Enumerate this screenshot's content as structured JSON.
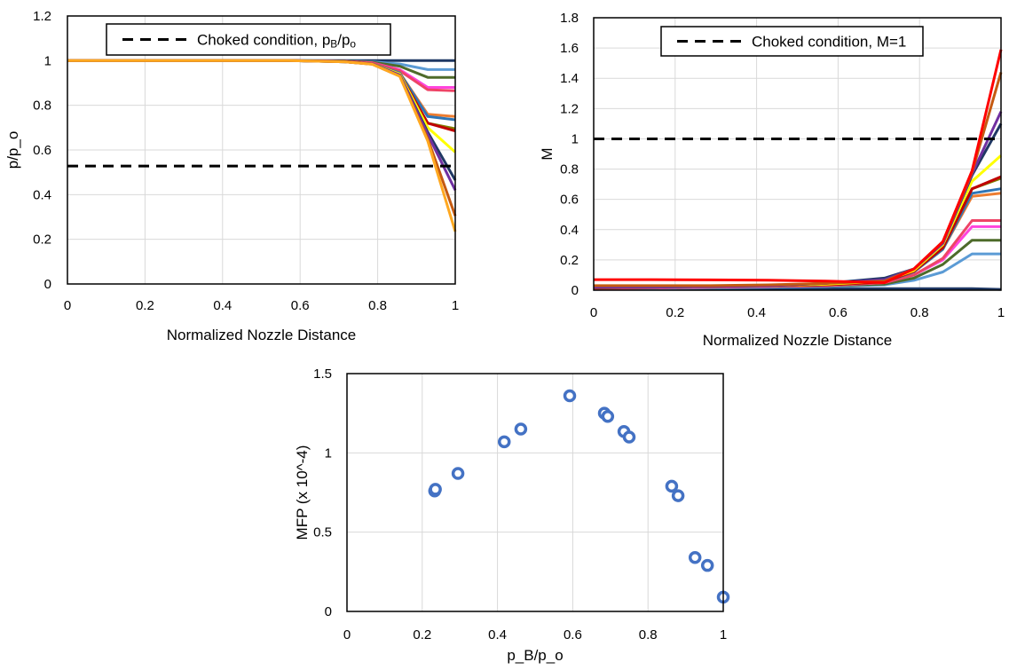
{
  "chart_data": [
    {
      "type": "line",
      "xlabel": "Normalized Nozzle Distance",
      "ylabel": "p/p_o",
      "xlim": [
        0,
        1
      ],
      "ylim": [
        0,
        1.2
      ],
      "xticks": [
        "0",
        "0.2",
        "0.4",
        "0.6",
        "0.8",
        "1"
      ],
      "yticks": [
        "0",
        "0.2",
        "0.4",
        "0.6",
        "0.8",
        "1",
        "1.2"
      ],
      "grid": true,
      "legend": {
        "label": "Choked condition, p_B/p_o",
        "placement": "top-center"
      },
      "reference_line": {
        "y": 0.528,
        "style": "dashed",
        "color": "#000000"
      },
      "x": [
        0,
        0.143,
        0.286,
        0.429,
        0.571,
        0.714,
        0.786,
        0.857,
        0.929,
        1
      ],
      "series": [
        {
          "color": "#1f3864",
          "values": [
            1,
            1,
            1,
            1,
            1,
            1,
            1,
            1,
            1,
            1
          ]
        },
        {
          "color": "#5b9bd5",
          "values": [
            1,
            1,
            1,
            1,
            1,
            0.998,
            0.995,
            0.985,
            0.96,
            0.96
          ]
        },
        {
          "color": "#4e6b2a",
          "values": [
            1,
            1,
            1,
            1,
            1,
            0.998,
            0.993,
            0.975,
            0.925,
            0.925
          ]
        },
        {
          "color": "#ff44dd",
          "values": [
            1,
            1,
            1,
            1,
            1,
            0.997,
            0.99,
            0.96,
            0.88,
            0.88
          ]
        },
        {
          "color": "#ee4466",
          "values": [
            1,
            1,
            1,
            1,
            1,
            0.997,
            0.99,
            0.955,
            0.87,
            0.865
          ]
        },
        {
          "color": "#ed7d31",
          "values": [
            1,
            1,
            1,
            1,
            1,
            0.996,
            0.985,
            0.945,
            0.76,
            0.75
          ]
        },
        {
          "color": "#2e75b6",
          "values": [
            1,
            1,
            1,
            1,
            1,
            0.996,
            0.985,
            0.945,
            0.75,
            0.735
          ]
        },
        {
          "color": "#7f7f00",
          "values": [
            1,
            1,
            1,
            1,
            1,
            0.996,
            0.985,
            0.94,
            0.72,
            0.695
          ]
        },
        {
          "color": "#c00000",
          "values": [
            1,
            1,
            1,
            1,
            1,
            0.996,
            0.985,
            0.94,
            0.72,
            0.685
          ]
        },
        {
          "color": "#ffff00",
          "values": [
            1,
            1,
            1,
            1,
            1,
            0.995,
            0.985,
            0.94,
            0.7,
            0.59
          ]
        },
        {
          "color": "#203864",
          "values": [
            1,
            1,
            1,
            1,
            1,
            0.995,
            0.985,
            0.935,
            0.68,
            0.465
          ]
        },
        {
          "color": "#7030a0",
          "values": [
            1,
            1,
            1,
            1,
            1,
            0.995,
            0.985,
            0.935,
            0.67,
            0.42
          ]
        },
        {
          "color": "#c55a11",
          "values": [
            1,
            1,
            1,
            1,
            1,
            0.995,
            0.984,
            0.93,
            0.65,
            0.305
          ]
        },
        {
          "color": "#ffa820",
          "values": [
            1,
            1,
            1,
            1,
            1,
            0.995,
            0.984,
            0.93,
            0.64,
            0.235
          ]
        }
      ]
    },
    {
      "type": "line",
      "xlabel": "Normalized Nozzle Distance",
      "ylabel": "M",
      "xlim": [
        0,
        1
      ],
      "ylim": [
        0,
        1.8
      ],
      "xticks": [
        "0",
        "0.2",
        "0.4",
        "0.6",
        "0.8",
        "1"
      ],
      "yticks": [
        "0",
        "0.2",
        "0.4",
        "0.6",
        "0.8",
        "1",
        "1.2",
        "1.4",
        "1.6",
        "1.8"
      ],
      "grid": true,
      "legend": {
        "label": "Choked condition, M=1",
        "placement": "top-center"
      },
      "reference_line": {
        "y": 1,
        "style": "dashed",
        "color": "#000000"
      },
      "x": [
        0,
        0.143,
        0.286,
        0.429,
        0.571,
        0.714,
        0.786,
        0.857,
        0.929,
        1
      ],
      "series": [
        {
          "color": "#1f3864",
          "values": [
            0.01,
            0.01,
            0.01,
            0.01,
            0.01,
            0.01,
            0.01,
            0.01,
            0.01,
            0.005
          ]
        },
        {
          "color": "#5b9bd5",
          "values": [
            0.005,
            0.01,
            0.015,
            0.02,
            0.025,
            0.035,
            0.065,
            0.12,
            0.24,
            0.24
          ]
        },
        {
          "color": "#4e6b2a",
          "values": [
            0.01,
            0.015,
            0.02,
            0.025,
            0.03,
            0.04,
            0.08,
            0.17,
            0.33,
            0.33
          ]
        },
        {
          "color": "#ff44dd",
          "values": [
            0.01,
            0.015,
            0.02,
            0.025,
            0.03,
            0.05,
            0.1,
            0.2,
            0.42,
            0.42
          ]
        },
        {
          "color": "#ee4466",
          "values": [
            0.01,
            0.015,
            0.02,
            0.025,
            0.03,
            0.05,
            0.1,
            0.21,
            0.46,
            0.46
          ]
        },
        {
          "color": "#ed7d31",
          "values": [
            0.015,
            0.02,
            0.025,
            0.03,
            0.035,
            0.055,
            0.12,
            0.27,
            0.62,
            0.64
          ]
        },
        {
          "color": "#2e75b6",
          "values": [
            0.015,
            0.02,
            0.025,
            0.03,
            0.035,
            0.055,
            0.12,
            0.27,
            0.64,
            0.67
          ]
        },
        {
          "color": "#7f7f00",
          "values": [
            0.015,
            0.02,
            0.025,
            0.03,
            0.035,
            0.055,
            0.125,
            0.28,
            0.67,
            0.74
          ]
        },
        {
          "color": "#c00000",
          "values": [
            0.015,
            0.02,
            0.025,
            0.03,
            0.035,
            0.055,
            0.125,
            0.28,
            0.67,
            0.75
          ]
        },
        {
          "color": "#ffff00",
          "values": [
            0.02,
            0.02,
            0.025,
            0.03,
            0.04,
            0.06,
            0.13,
            0.3,
            0.72,
            0.89
          ]
        },
        {
          "color": "#203864",
          "values": [
            0.02,
            0.02,
            0.025,
            0.03,
            0.045,
            0.08,
            0.14,
            0.31,
            0.76,
            1.1
          ]
        },
        {
          "color": "#7030a0",
          "values": [
            0.02,
            0.02,
            0.025,
            0.03,
            0.045,
            0.07,
            0.14,
            0.31,
            0.77,
            1.18
          ]
        },
        {
          "color": "#c55a11",
          "values": [
            0.03,
            0.03,
            0.03,
            0.035,
            0.045,
            0.06,
            0.14,
            0.32,
            0.78,
            1.44
          ]
        },
        {
          "color": "#ff0000",
          "values": [
            0.07,
            0.07,
            0.068,
            0.066,
            0.06,
            0.05,
            0.14,
            0.32,
            0.79,
            1.59
          ]
        }
      ]
    },
    {
      "type": "scatter",
      "xlabel": "p_B/p_o",
      "ylabel": "MFP (x 10^-4)",
      "xlim": [
        0,
        1
      ],
      "ylim": [
        0,
        1.5
      ],
      "xticks": [
        "0",
        "0.2",
        "0.4",
        "0.6",
        "0.8",
        "1"
      ],
      "yticks": [
        "0",
        "0.5",
        "1",
        "1.5"
      ],
      "grid": true,
      "marker_color": "#4472c4",
      "points": [
        {
          "x": 0.233,
          "y": 0.76
        },
        {
          "x": 0.235,
          "y": 0.77
        },
        {
          "x": 0.295,
          "y": 0.87
        },
        {
          "x": 0.418,
          "y": 1.07
        },
        {
          "x": 0.462,
          "y": 1.15
        },
        {
          "x": 0.592,
          "y": 1.36
        },
        {
          "x": 0.684,
          "y": 1.25
        },
        {
          "x": 0.693,
          "y": 1.23
        },
        {
          "x": 0.736,
          "y": 1.135
        },
        {
          "x": 0.75,
          "y": 1.1
        },
        {
          "x": 0.863,
          "y": 0.79
        },
        {
          "x": 0.88,
          "y": 0.73
        },
        {
          "x": 0.925,
          "y": 0.34
        },
        {
          "x": 0.958,
          "y": 0.29
        },
        {
          "x": 1.0,
          "y": 0.09
        }
      ]
    }
  ]
}
